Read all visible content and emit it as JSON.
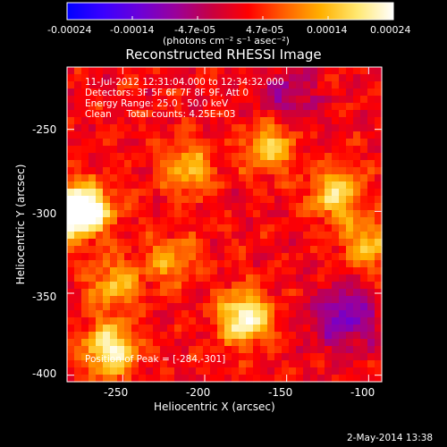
{
  "colorbar": {
    "ticks": [
      "-0.00024",
      "-0.00014",
      "-4.7e-05",
      "4.7e-05",
      "0.00014",
      "0.00024"
    ],
    "units": "(photons cm⁻² s⁻¹ asec⁻²)",
    "palette": [
      "#0000ff",
      "#3a00ff",
      "#6c00d8",
      "#9a009a",
      "#c80040",
      "#ff0000",
      "#ff6000",
      "#ffb000",
      "#ffe870",
      "#ffffff"
    ]
  },
  "chart_data": {
    "type": "heatmap",
    "title": "Reconstructed RHESSI Image",
    "xlabel": "Heliocentric X (arcsec)",
    "ylabel": "Heliocentric Y (arcsec)",
    "xlim": [
      -284,
      -92
    ],
    "ylim": [
      -404,
      -212
    ],
    "xticks": [
      -250,
      -200,
      -150,
      -100
    ],
    "yticks": [
      -250,
      -300,
      -350,
      -400
    ],
    "sources": [
      {
        "x": -284,
        "y": -301,
        "intensity": 1.0
      },
      {
        "x": -258,
        "y": -385,
        "intensity": 0.9
      },
      {
        "x": -176,
        "y": -365,
        "intensity": 0.95
      },
      {
        "x": -270,
        "y": -298,
        "intensity": 0.75
      },
      {
        "x": -210,
        "y": -275,
        "intensity": 0.55
      },
      {
        "x": -160,
        "y": -260,
        "intensity": 0.65
      },
      {
        "x": -120,
        "y": -290,
        "intensity": 0.7
      },
      {
        "x": -100,
        "y": -320,
        "intensity": 0.6
      },
      {
        "x": -255,
        "y": -345,
        "intensity": 0.55
      },
      {
        "x": -220,
        "y": -330,
        "intensity": 0.45
      }
    ],
    "negative_regions": [
      {
        "x": -115,
        "y": -365,
        "intensity": -1.0
      },
      {
        "x": -150,
        "y": -230,
        "intensity": -0.6
      }
    ]
  },
  "annotations": {
    "time": "11-Jul-2012 12:31:04.000 to 12:34:32.000",
    "detectors": "Detectors: 3F 5F 6F 7F 8F 9F, Att 0",
    "energy": "Energy Range: 25.0 - 50.0 keV",
    "clean": "Clean     Total counts: 4.25E+03",
    "peak": "Position of Peak = [-284,-301]"
  },
  "footer": {
    "date": "2-May-2014 13:38"
  }
}
